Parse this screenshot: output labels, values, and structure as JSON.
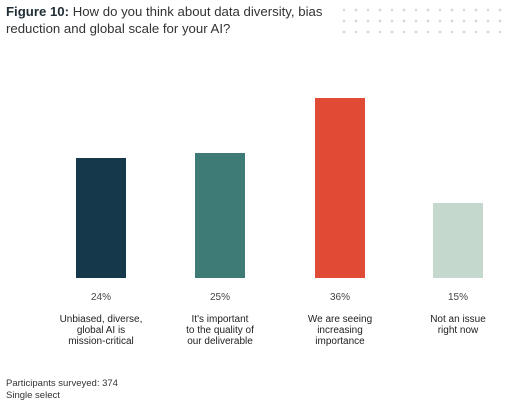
{
  "figure": {
    "label": "Figure 10:",
    "question": "How do you think about data diversity, bias reduction and global scale for your AI?"
  },
  "chart_data": {
    "type": "bar",
    "categories": [
      "Unbiased, diverse, global AI is mission-critical",
      "It's important to the quality of our deliverable",
      "We are seeing increasing importance",
      "Not an issue right now"
    ],
    "category_lines": [
      [
        "Unbiased, diverse,",
        "global AI is",
        "mission-critical"
      ],
      [
        "It's important",
        "to the quality of",
        "our deliverable"
      ],
      [
        "We are seeing",
        "increasing",
        "importance"
      ],
      [
        "Not an issue",
        "right now"
      ]
    ],
    "values": [
      24,
      25,
      36,
      15
    ],
    "value_labels": [
      "24%",
      "25%",
      "36%",
      "15%"
    ],
    "colors": [
      "#15384a",
      "#3e7a76",
      "#e04b35",
      "#c5d8ce"
    ],
    "ylim": [
      0,
      40
    ],
    "grid": false,
    "legend": "none"
  },
  "footer": {
    "participants": "Participants surveyed: 374",
    "select_type": "Single select"
  }
}
